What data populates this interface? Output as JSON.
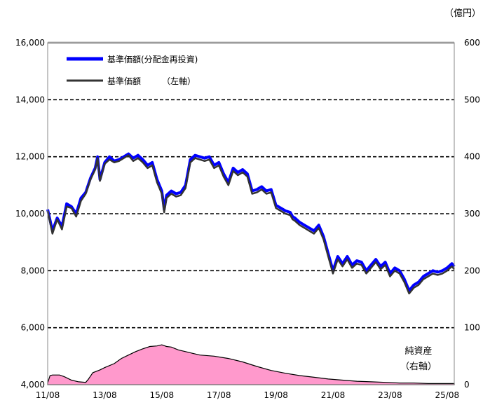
{
  "chart_data": {
    "type": "line",
    "unit_label": "（億円）",
    "x_ticks": [
      "11/08",
      "13/08",
      "15/08",
      "17/08",
      "19/08",
      "21/08",
      "23/08",
      "25/08"
    ],
    "y_left": {
      "ylim": [
        4000,
        16000
      ],
      "ticks": [
        "4,000",
        "6,000",
        "8,000",
        "10,000",
        "12,000",
        "14,000",
        "16,000"
      ]
    },
    "y_right": {
      "ylim": [
        0,
        600
      ],
      "ticks": [
        "0",
        "100",
        "200",
        "300",
        "400",
        "500",
        "600"
      ]
    },
    "grid": "horizontal dashed",
    "legend_position": "top-left",
    "annotation": {
      "line1": "純資産",
      "line2": "（右軸）"
    },
    "series": [
      {
        "name": "基準価額(分配金再投資)",
        "axis": "left",
        "color": "#0000ff",
        "x": [
          "2011-08",
          "2011-10",
          "2011-12",
          "2012-02",
          "2012-04",
          "2012-06",
          "2012-08",
          "2012-10",
          "2012-12",
          "2013-02",
          "2013-04",
          "2013-05",
          "2013-06",
          "2013-08",
          "2013-10",
          "2013-12",
          "2014-02",
          "2014-04",
          "2014-06",
          "2014-08",
          "2014-10",
          "2014-12",
          "2015-02",
          "2015-04",
          "2015-06",
          "2015-08",
          "2015-09",
          "2015-10",
          "2015-12",
          "2016-02",
          "2016-04",
          "2016-06",
          "2016-08",
          "2016-10",
          "2016-12",
          "2017-02",
          "2017-04",
          "2017-06",
          "2017-08",
          "2017-10",
          "2017-12",
          "2018-02",
          "2018-04",
          "2018-06",
          "2018-08",
          "2018-10",
          "2018-12",
          "2019-02",
          "2019-04",
          "2019-06",
          "2019-08",
          "2019-10",
          "2019-12",
          "2020-02",
          "2020-03",
          "2020-04",
          "2020-06",
          "2020-08",
          "2020-10",
          "2020-12",
          "2021-02",
          "2021-04",
          "2021-06",
          "2021-08",
          "2021-10",
          "2021-12",
          "2022-02",
          "2022-04",
          "2022-06",
          "2022-08",
          "2022-10",
          "2022-12",
          "2023-02",
          "2023-04",
          "2023-06",
          "2023-08",
          "2023-10",
          "2023-12",
          "2024-02",
          "2024-04",
          "2024-06",
          "2024-08",
          "2024-10",
          "2024-12",
          "2025-02",
          "2025-04",
          "2025-06",
          "2025-08",
          "2025-10",
          "2025-11"
        ],
        "values": [
          10150,
          9400,
          9850,
          9550,
          10350,
          10250,
          10000,
          10550,
          10750,
          11250,
          11600,
          12000,
          11200,
          11800,
          12000,
          11850,
          11900,
          12000,
          12100,
          11950,
          12050,
          11900,
          11700,
          11800,
          11200,
          10800,
          10150,
          10650,
          10800,
          10700,
          10750,
          11000,
          11900,
          12050,
          12000,
          11950,
          12000,
          11700,
          11800,
          11400,
          11100,
          11600,
          11450,
          11550,
          11400,
          10800,
          10850,
          10950,
          10800,
          10850,
          10300,
          10200,
          10100,
          10050,
          9900,
          9850,
          9700,
          9600,
          9500,
          9400,
          9600,
          9200,
          8600,
          8000,
          8500,
          8250,
          8500,
          8200,
          8350,
          8300,
          8000,
          8200,
          8400,
          8150,
          8300,
          7900,
          8100,
          8000,
          7700,
          7300,
          7500,
          7600,
          7800,
          7900,
          8000,
          7950,
          8000,
          8100,
          8250,
          8150
        ]
      },
      {
        "name": "基準価額　　　（左軸）",
        "axis": "left",
        "color": "#333333",
        "x": [
          "2011-08",
          "2011-10",
          "2011-12",
          "2012-02",
          "2012-04",
          "2012-06",
          "2012-08",
          "2012-10",
          "2012-12",
          "2013-02",
          "2013-04",
          "2013-05",
          "2013-06",
          "2013-08",
          "2013-10",
          "2013-12",
          "2014-02",
          "2014-04",
          "2014-06",
          "2014-08",
          "2014-10",
          "2014-12",
          "2015-02",
          "2015-04",
          "2015-06",
          "2015-08",
          "2015-09",
          "2015-10",
          "2015-12",
          "2016-02",
          "2016-04",
          "2016-06",
          "2016-08",
          "2016-10",
          "2016-12",
          "2017-02",
          "2017-04",
          "2017-06",
          "2017-08",
          "2017-10",
          "2017-12",
          "2018-02",
          "2018-04",
          "2018-06",
          "2018-08",
          "2018-10",
          "2018-12",
          "2019-02",
          "2019-04",
          "2019-06",
          "2019-08",
          "2019-10",
          "2019-12",
          "2020-02",
          "2020-03",
          "2020-04",
          "2020-06",
          "2020-08",
          "2020-10",
          "2020-12",
          "2021-02",
          "2021-04",
          "2021-06",
          "2021-08",
          "2021-10",
          "2021-12",
          "2022-02",
          "2022-04",
          "2022-06",
          "2022-08",
          "2022-10",
          "2022-12",
          "2023-02",
          "2023-04",
          "2023-06",
          "2023-08",
          "2023-10",
          "2023-12",
          "2024-02",
          "2024-04",
          "2024-06",
          "2024-08",
          "2024-10",
          "2024-12",
          "2025-02",
          "2025-04",
          "2025-06",
          "2025-08",
          "2025-10",
          "2025-11"
        ],
        "values": [
          10100,
          9300,
          9800,
          9450,
          10250,
          10200,
          9900,
          10450,
          10700,
          11200,
          11550,
          11950,
          11150,
          11750,
          11900,
          11800,
          11850,
          11950,
          12050,
          11850,
          11950,
          11800,
          11600,
          11700,
          11100,
          10700,
          10050,
          10550,
          10700,
          10600,
          10650,
          10900,
          11800,
          11950,
          11900,
          11850,
          11900,
          11600,
          11700,
          11300,
          11000,
          11500,
          11350,
          11450,
          11300,
          10700,
          10750,
          10850,
          10700,
          10750,
          10200,
          10100,
          10000,
          9950,
          9800,
          9750,
          9600,
          9500,
          9400,
          9300,
          9500,
          9100,
          8500,
          7900,
          8400,
          8150,
          8400,
          8100,
          8250,
          8200,
          7900,
          8100,
          8300,
          8050,
          8200,
          7800,
          8000,
          7900,
          7600,
          7200,
          7400,
          7500,
          7700,
          7800,
          7900,
          7850,
          7900,
          8000,
          8150,
          8050
        ]
      },
      {
        "name": "純資産",
        "axis": "right",
        "type": "area",
        "color": "#ff99cc",
        "x": [
          "2011-08",
          "2011-09",
          "2011-10",
          "2012-01",
          "2012-03",
          "2012-06",
          "2012-09",
          "2012-12",
          "2013-01",
          "2013-03",
          "2013-06",
          "2013-08",
          "2013-12",
          "2014-03",
          "2014-06",
          "2014-09",
          "2014-12",
          "2015-03",
          "2015-06",
          "2015-08",
          "2015-10",
          "2015-12",
          "2016-03",
          "2016-06",
          "2016-09",
          "2016-12",
          "2017-06",
          "2017-12",
          "2018-06",
          "2018-12",
          "2019-06",
          "2019-12",
          "2020-06",
          "2020-12",
          "2021-06",
          "2021-12",
          "2022-06",
          "2022-12",
          "2023-06",
          "2023-12",
          "2024-06",
          "2024-12",
          "2025-06",
          "2025-11"
        ],
        "values": [
          3,
          16,
          17,
          17,
          14,
          8,
          5,
          4,
          9,
          21,
          26,
          30,
          37,
          46,
          52,
          58,
          63,
          67,
          68,
          70,
          67,
          66,
          61,
          58,
          55,
          52,
          50,
          46,
          40,
          32,
          25,
          20,
          16,
          13,
          10,
          8,
          6,
          5,
          4,
          3,
          3,
          2,
          2,
          2
        ]
      }
    ]
  }
}
